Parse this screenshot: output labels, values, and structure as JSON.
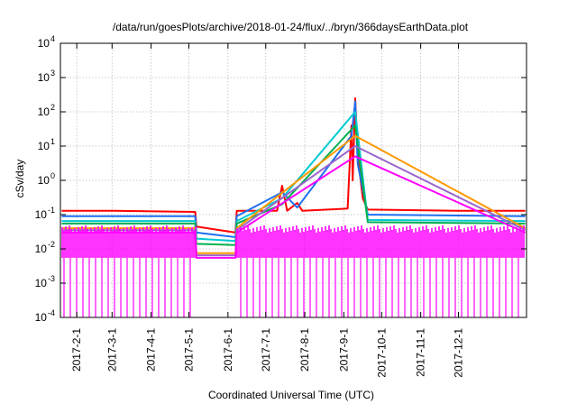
{
  "chart_data": {
    "type": "line",
    "title": "/data/run/goesPlots/archive/2018-01-24/flux/../bryn/366daysEarthData.plot",
    "xlabel": "Coordinated Universal Time (UTC)",
    "ylabel": "cSv/day",
    "yscale": "log",
    "ylim": [
      0.0001,
      10000
    ],
    "xlim": [
      "2017-01-19",
      "2018-01-24"
    ],
    "grid": true,
    "legend": "none",
    "x_ticks": [
      "2017-2-1",
      "2017-3-1",
      "2017-4-1",
      "2017-5-1",
      "2017-6-1",
      "2017-7-1",
      "2017-8-1",
      "2017-9-1",
      "2017-10-1",
      "2017-11-1",
      "2017-12-1"
    ],
    "y_ticks": [
      {
        "value": 0.0001,
        "mantissa": "10",
        "exp": "-4"
      },
      {
        "value": 0.001,
        "mantissa": "10",
        "exp": "-3"
      },
      {
        "value": 0.01,
        "mantissa": "10",
        "exp": "-2"
      },
      {
        "value": 0.1,
        "mantissa": "10",
        "exp": "-1"
      },
      {
        "value": 1,
        "mantissa": "10",
        "exp": "0"
      },
      {
        "value": 10,
        "mantissa": "10",
        "exp": "1"
      },
      {
        "value": 100,
        "mantissa": "10",
        "exp": "2"
      },
      {
        "value": 1000,
        "mantissa": "10",
        "exp": "3"
      },
      {
        "value": 10000,
        "mantissa": "10",
        "exp": "4"
      }
    ],
    "data_gap": [
      "2017-05-07",
      "2017-06-08"
    ],
    "series": [
      {
        "color": "#ff0000",
        "points": [
          [
            "2017-01-20",
            0.13
          ],
          [
            "2017-03-01",
            0.13
          ],
          [
            "2017-05-06",
            0.12
          ],
          [
            "2017-05-07",
            0.045
          ],
          [
            "2017-06-07",
            0.03
          ],
          [
            "2017-06-08",
            0.13
          ],
          [
            "2017-07-10",
            0.13
          ],
          [
            "2017-07-14",
            0.7
          ],
          [
            "2017-07-18",
            0.13
          ],
          [
            "2017-07-26",
            0.22
          ],
          [
            "2017-07-30",
            0.13
          ],
          [
            "2017-09-04",
            0.15
          ],
          [
            "2017-09-07",
            40
          ],
          [
            "2017-09-08",
            1.0
          ],
          [
            "2017-09-10",
            250
          ],
          [
            "2017-09-12",
            5
          ],
          [
            "2017-09-16",
            0.3
          ],
          [
            "2017-09-20",
            0.14
          ],
          [
            "2017-12-01",
            0.13
          ],
          [
            "2018-01-23",
            0.13
          ]
        ]
      },
      {
        "color": "#1e6ff0",
        "points": [
          [
            "2017-01-20",
            0.09
          ],
          [
            "2017-05-06",
            0.09
          ],
          [
            "2017-05-07",
            0.03
          ],
          [
            "2017-06-07",
            0.022
          ],
          [
            "2017-06-08",
            0.09
          ],
          [
            "2017-07-14",
            0.45
          ],
          [
            "2017-07-26",
            0.16
          ],
          [
            "2017-09-07",
            20
          ],
          [
            "2017-09-10",
            200
          ],
          [
            "2017-09-12",
            3
          ],
          [
            "2017-09-20",
            0.1
          ],
          [
            "2018-01-23",
            0.09
          ]
        ]
      },
      {
        "color": "#00c8d2",
        "points": [
          [
            "2017-01-20",
            0.065
          ],
          [
            "2017-05-06",
            0.065
          ],
          [
            "2017-05-07",
            0.02
          ],
          [
            "2017-06-07",
            0.017
          ],
          [
            "2017-06-08",
            0.065
          ],
          [
            "2017-07-14",
            0.3
          ],
          [
            "2017-09-10",
            100
          ],
          [
            "2017-09-20",
            0.07
          ],
          [
            "2018-01-23",
            0.065
          ]
        ]
      },
      {
        "color": "#00b050",
        "points": [
          [
            "2017-01-20",
            0.055
          ],
          [
            "2017-05-06",
            0.055
          ],
          [
            "2017-05-07",
            0.014
          ],
          [
            "2017-06-07",
            0.013
          ],
          [
            "2017-06-08",
            0.055
          ],
          [
            "2017-07-14",
            0.2
          ],
          [
            "2017-09-10",
            40
          ],
          [
            "2017-09-20",
            0.06
          ],
          [
            "2018-01-23",
            0.055
          ]
        ]
      },
      {
        "color": "#ff9900",
        "points": [
          [
            "2017-01-20",
            0.04
          ],
          [
            "2017-05-06",
            0.04
          ],
          [
            "2017-05-07",
            0.0075
          ],
          [
            "2017-06-07",
            0.0075
          ],
          [
            "2017-06-08",
            0.04
          ],
          [
            "2017-09-10",
            20
          ],
          [
            "2018-01-23",
            0.04
          ]
        ]
      },
      {
        "color": "#9966cc",
        "points": [
          [
            "2017-01-20",
            0.035
          ],
          [
            "2017-05-06",
            0.035
          ],
          [
            "2017-05-07",
            0.0065
          ],
          [
            "2017-06-07",
            0.0065
          ],
          [
            "2017-06-08",
            0.035
          ],
          [
            "2017-09-10",
            10
          ],
          [
            "2018-01-23",
            0.035
          ]
        ]
      },
      {
        "color": "#ff00ff",
        "points": [
          [
            "2017-01-20",
            0.03
          ],
          [
            "2017-05-06",
            0.03
          ],
          [
            "2017-05-07",
            0.0055
          ],
          [
            "2017-06-07",
            0.0055
          ],
          [
            "2017-06-08",
            0.03
          ],
          [
            "2017-09-10",
            5
          ],
          [
            "2018-01-23",
            0.03
          ]
        ]
      }
    ]
  }
}
